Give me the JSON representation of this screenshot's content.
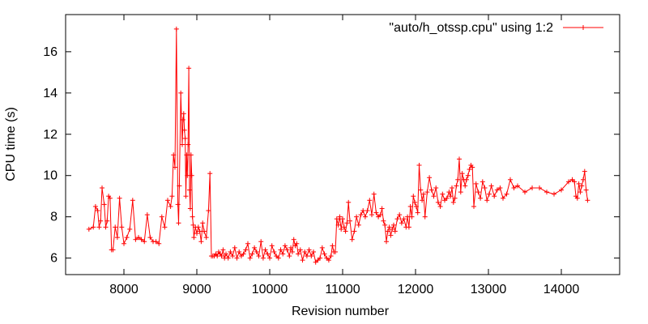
{
  "chart_data": {
    "type": "line",
    "title": "",
    "xlabel": "Revision number",
    "ylabel": "CPU time (s)",
    "xlim": [
      7200,
      14800
    ],
    "ylim": [
      5.2,
      17.8
    ],
    "x_ticks": [
      8000,
      9000,
      10000,
      11000,
      12000,
      13000,
      14000
    ],
    "y_ticks": [
      6,
      8,
      10,
      12,
      14,
      16
    ],
    "grid": false,
    "legend_position": "top-right",
    "series": [
      {
        "name": "\"auto/h_otssp.cpu\" using 1:2",
        "color": "#ff0000",
        "marker": "plus",
        "x": [
          7520,
          7580,
          7610,
          7640,
          7660,
          7680,
          7700,
          7730,
          7750,
          7770,
          7790,
          7810,
          7830,
          7850,
          7880,
          7910,
          7940,
          7970,
          8000,
          8040,
          8080,
          8120,
          8160,
          8200,
          8240,
          8280,
          8320,
          8360,
          8400,
          8440,
          8480,
          8520,
          8560,
          8600,
          8640,
          8660,
          8680,
          8700,
          8720,
          8740,
          8750,
          8760,
          8780,
          8800,
          8810,
          8820,
          8830,
          8840,
          8850,
          8860,
          8870,
          8880,
          8890,
          8900,
          8910,
          8920,
          8930,
          8940,
          8950,
          8960,
          8980,
          9000,
          9020,
          9040,
          9060,
          9080,
          9100,
          9130,
          9160,
          9180,
          9200,
          9220,
          9240,
          9260,
          9280,
          9300,
          9320,
          9340,
          9360,
          9380,
          9400,
          9430,
          9460,
          9490,
          9520,
          9550,
          9580,
          9610,
          9640,
          9670,
          9700,
          9730,
          9760,
          9790,
          9820,
          9850,
          9880,
          9910,
          9940,
          9970,
          10000,
          10030,
          10060,
          10090,
          10120,
          10150,
          10180,
          10210,
          10240,
          10270,
          10290,
          10310,
          10330,
          10350,
          10370,
          10390,
          10420,
          10450,
          10480,
          10510,
          10540,
          10570,
          10600,
          10630,
          10660,
          10690,
          10720,
          10750,
          10780,
          10810,
          10840,
          10860,
          10880,
          10900,
          10920,
          10940,
          10960,
          10980,
          11000,
          11020,
          11040,
          11060,
          11080,
          11100,
          11130,
          11160,
          11190,
          11220,
          11250,
          11280,
          11310,
          11340,
          11370,
          11400,
          11430,
          11460,
          11490,
          11520,
          11540,
          11560,
          11580,
          11600,
          11620,
          11640,
          11660,
          11680,
          11700,
          11720,
          11750,
          11780,
          11810,
          11840,
          11870,
          11890,
          11910,
          11930,
          11950,
          11970,
          11990,
          12010,
          12030,
          12050,
          12070,
          12090,
          12110,
          12130,
          12160,
          12190,
          12220,
          12250,
          12280,
          12310,
          12340,
          12370,
          12400,
          12430,
          12460,
          12480,
          12500,
          12520,
          12540,
          12560,
          12580,
          12600,
          12620,
          12640,
          12660,
          12680,
          12700,
          12720,
          12740,
          12760,
          12780,
          12800,
          12830,
          12860,
          12890,
          12920,
          12950,
          12980,
          13010,
          13040,
          13080,
          13120,
          13160,
          13200,
          13250,
          13300,
          13350,
          13400,
          13500,
          13600,
          13700,
          13800,
          13900,
          14000,
          14100,
          14150,
          14180,
          14200,
          14220,
          14240,
          14260,
          14280,
          14300,
          14320,
          14340,
          14360
        ],
        "y": [
          7.4,
          7.5,
          8.5,
          8.3,
          7.5,
          7.8,
          9.4,
          8.6,
          7.5,
          7.8,
          9.0,
          8.9,
          6.4,
          6.4,
          7.5,
          7.0,
          8.9,
          7.5,
          6.7,
          7.0,
          7.4,
          8.8,
          6.9,
          7.0,
          6.9,
          6.8,
          8.1,
          7.0,
          6.8,
          6.8,
          6.7,
          8.0,
          7.5,
          8.8,
          8.5,
          9.0,
          11.0,
          10.4,
          17.1,
          8.6,
          7.7,
          9.5,
          14.0,
          11.5,
          12.7,
          13.0,
          12.2,
          11.8,
          9.0,
          11.0,
          10.0,
          11.5,
          15.2,
          9.3,
          8.4,
          11.0,
          10.0,
          8.0,
          7.6,
          7.0,
          7.5,
          7.2,
          7.5,
          7.3,
          6.8,
          7.7,
          7.3,
          7.0,
          8.3,
          10.1,
          6.1,
          6.1,
          6.1,
          6.2,
          6.1,
          6.3,
          6.2,
          6.1,
          6.4,
          6.0,
          6.2,
          6.0,
          6.3,
          6.1,
          6.5,
          6.0,
          6.3,
          6.1,
          6.2,
          6.4,
          6.7,
          6.0,
          6.2,
          6.5,
          6.3,
          6.1,
          6.8,
          6.0,
          6.4,
          6.2,
          6.0,
          6.6,
          6.3,
          6.1,
          6.0,
          6.4,
          6.2,
          6.6,
          6.4,
          6.1,
          6.5,
          6.3,
          6.9,
          6.6,
          6.7,
          6.2,
          6.4,
          5.9,
          6.3,
          6.1,
          6.4,
          6.1,
          6.3,
          5.8,
          5.9,
          6.0,
          6.5,
          6.2,
          6.0,
          5.9,
          6.1,
          6.6,
          6.3,
          6.3,
          7.9,
          7.6,
          8.0,
          7.4,
          7.9,
          7.5,
          7.3,
          7.7,
          8.7,
          7.8,
          6.9,
          7.3,
          8.0,
          7.6,
          8.1,
          8.3,
          8.0,
          8.3,
          8.8,
          8.1,
          9.1,
          8.2,
          8.0,
          8.1,
          8.4,
          7.8,
          7.6,
          6.8,
          7.3,
          7.5,
          7.1,
          7.4,
          7.6,
          7.3,
          7.9,
          8.1,
          7.7,
          7.9,
          7.5,
          8.0,
          7.5,
          8.5,
          8.0,
          9.0,
          8.7,
          8.5,
          8.2,
          10.5,
          9.3,
          8.8,
          9.1,
          8.0,
          9.2,
          9.9,
          9.3,
          9.0,
          9.4,
          8.7,
          8.5,
          9.1,
          8.8,
          8.9,
          9.2,
          9.0,
          9.4,
          8.7,
          8.9,
          9.5,
          9.8,
          10.8,
          9.2,
          10.1,
          9.8,
          9.5,
          9.8,
          10.0,
          10.3,
          10.5,
          10.4,
          8.5,
          9.6,
          9.2,
          8.9,
          9.7,
          9.4,
          8.8,
          9.1,
          9.5,
          9.0,
          9.3,
          9.4,
          8.9,
          9.1,
          9.8,
          9.4,
          9.5,
          9.2,
          9.4,
          9.4,
          9.2,
          9.1,
          9.3,
          9.7,
          9.8,
          9.7,
          9.0,
          8.9,
          9.6,
          9.2,
          9.5,
          9.8,
          10.2,
          9.3,
          8.8
        ]
      }
    ]
  }
}
